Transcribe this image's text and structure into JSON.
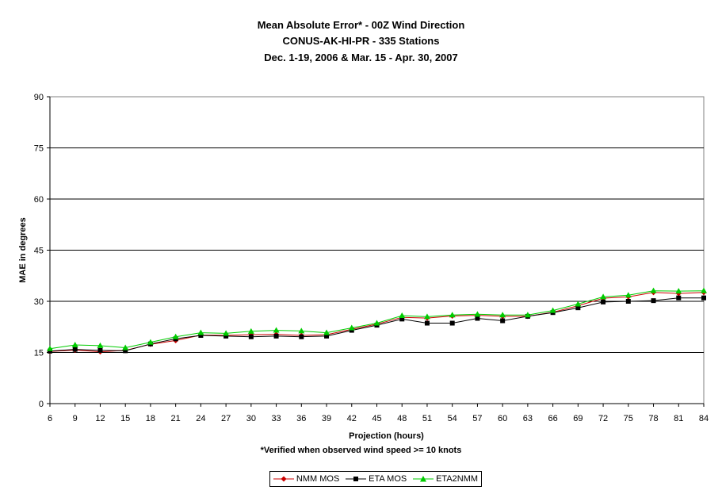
{
  "titles": {
    "line1": "Mean Absolute Error* - 00Z Wind Direction",
    "line2": "CONUS-AK-HI-PR - 335 Stations",
    "line3": "Dec. 1-19, 2006 & Mar. 15 - Apr. 30, 2007"
  },
  "footnote": "*Verified when observed wind speed >= 10 knots",
  "chart_data": {
    "type": "line",
    "xlabel": "Projection (hours)",
    "ylabel": "MAE in degrees",
    "ylim": [
      0,
      90
    ],
    "yticks": [
      0,
      15,
      30,
      45,
      60,
      75,
      90
    ],
    "grid": true,
    "legend_position": "bottom",
    "x": [
      6,
      9,
      12,
      15,
      18,
      21,
      24,
      27,
      30,
      33,
      36,
      39,
      42,
      45,
      48,
      51,
      54,
      57,
      60,
      63,
      66,
      69,
      72,
      75,
      78,
      81,
      84
    ],
    "series": [
      {
        "name": "NMM MOS",
        "color": "#cc0000",
        "marker": "diamond",
        "values": [
          15.3,
          15.7,
          15.2,
          15.6,
          17.4,
          18.5,
          20.1,
          20.0,
          20.2,
          20.3,
          20.0,
          20.2,
          21.8,
          23.3,
          25.3,
          25.1,
          25.7,
          25.9,
          25.6,
          25.6,
          26.8,
          28.7,
          30.9,
          31.3,
          32.6,
          32.3,
          32.6
        ]
      },
      {
        "name": "ETA MOS",
        "color": "#000000",
        "marker": "square",
        "values": [
          15.4,
          15.9,
          15.6,
          15.5,
          17.5,
          19.0,
          20.0,
          19.8,
          19.6,
          19.8,
          19.6,
          19.8,
          21.5,
          23.0,
          24.8,
          23.6,
          23.6,
          25.0,
          24.3,
          25.6,
          26.7,
          28.1,
          29.8,
          30.0,
          30.2,
          31.0,
          31.0
        ]
      },
      {
        "name": "ETA2NMM",
        "color": "#00cc00",
        "marker": "triangle",
        "values": [
          16.1,
          17.2,
          17.0,
          16.4,
          18.0,
          19.6,
          20.8,
          20.6,
          21.2,
          21.5,
          21.3,
          20.8,
          22.2,
          23.6,
          25.8,
          25.5,
          26.0,
          26.2,
          26.0,
          26.0,
          27.3,
          29.2,
          31.3,
          31.8,
          33.1,
          33.0,
          33.1
        ]
      }
    ]
  }
}
